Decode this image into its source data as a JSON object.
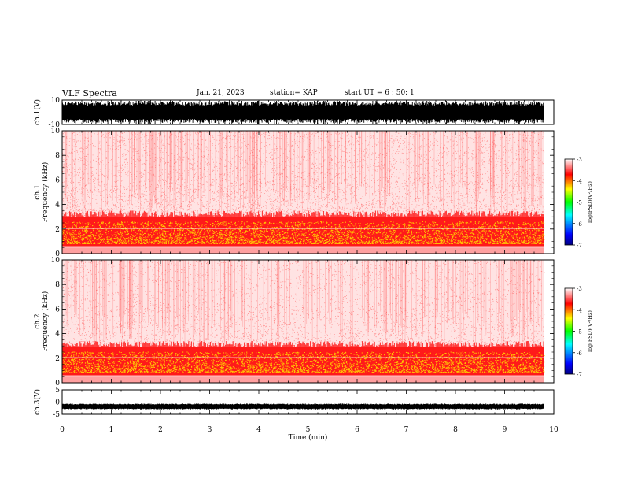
{
  "header": {
    "title": "VLF Spectra",
    "date": "Jan. 21, 2023",
    "station": "station= KAP",
    "start": "start UT =  6 : 50: 1"
  },
  "chart_data": [
    {
      "type": "line",
      "panel": "ch1-waveform",
      "ylabel": "ch.1(V)",
      "ylim": [
        -10,
        10
      ],
      "y_ticks": [
        "10",
        "-10"
      ],
      "xlim": [
        0,
        10
      ]
    },
    {
      "type": "heatmap",
      "panel": "ch1-spectrogram",
      "ylabel_line1": "ch.1",
      "ylabel_line2": "Frequency (kHz)",
      "ylim": [
        0,
        10
      ],
      "y_ticks": [
        "0",
        "2",
        "4",
        "6",
        "8",
        "10"
      ],
      "xlim": [
        0,
        10
      ],
      "data_end_min": 9.8,
      "bands": [
        {
          "from_khz": 0.6,
          "to_khz": 3.0,
          "level": "red-yellow"
        },
        {
          "from_khz": 3.0,
          "to_khz": 10.0,
          "level": "light-red"
        }
      ],
      "colorbar": {
        "label": "log(PSD)(V²/Hz)",
        "range": [
          -7,
          -3
        ],
        "ticks": [
          "-3",
          "-4",
          "-5",
          "-6",
          "-7"
        ]
      }
    },
    {
      "type": "heatmap",
      "panel": "ch2-spectrogram",
      "ylabel_line1": "ch.2",
      "ylabel_line2": "Frequency (kHz)",
      "ylim": [
        0,
        10
      ],
      "y_ticks": [
        "0",
        "2",
        "4",
        "6",
        "8",
        "10"
      ],
      "xlim": [
        0,
        10
      ],
      "data_end_min": 9.8,
      "bands": [
        {
          "from_khz": 0.6,
          "to_khz": 2.9,
          "level": "yellow-red"
        },
        {
          "from_khz": 2.9,
          "to_khz": 10.0,
          "level": "light-red"
        }
      ],
      "colorbar": {
        "label": "log(PSD)(V²/Hz)",
        "range": [
          -7,
          -3
        ],
        "ticks": [
          "-3",
          "-4",
          "-5",
          "-6",
          "-7"
        ]
      }
    },
    {
      "type": "line",
      "panel": "ch3-waveform",
      "ylabel": "ch.3(V)",
      "ylim": [
        -5,
        5
      ],
      "y_ticks": [
        "5",
        "0",
        "-5"
      ],
      "xlim": [
        0,
        10
      ],
      "xlabel": "Time (min)",
      "x_ticks": [
        "0",
        "1",
        "2",
        "3",
        "4",
        "5",
        "6",
        "7",
        "8",
        "9",
        "10"
      ],
      "signal_level_v": -1.8
    }
  ],
  "colors": {
    "jet": [
      "#000080",
      "#0000ff",
      "#00ffff",
      "#00ff00",
      "#ffff00",
      "#ff0000",
      "#ffffff"
    ]
  }
}
